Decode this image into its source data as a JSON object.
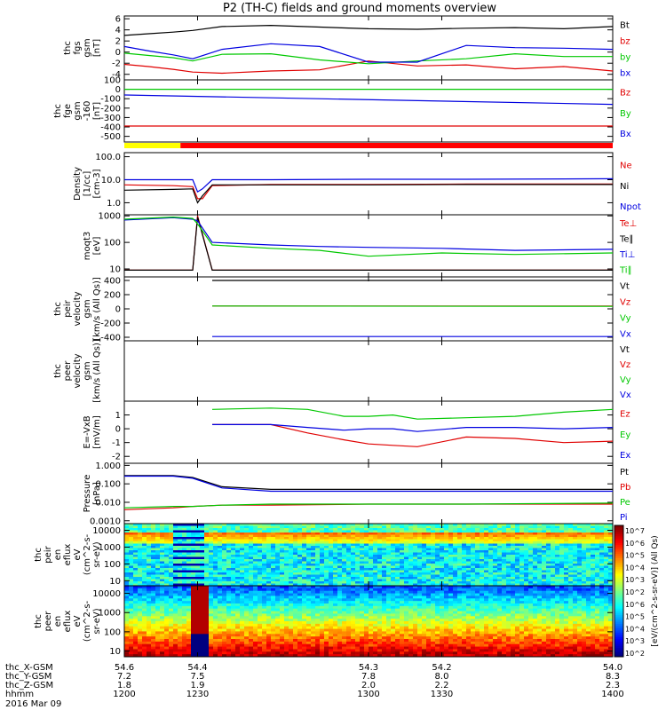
{
  "title": "P2 (TH-C) fields and ground moments overview",
  "colors": {
    "black": "#000000",
    "red": "#e00000",
    "green": "#00c800",
    "blue": "#0000e0"
  },
  "chart_data": [
    {
      "type": "line",
      "ylabel": [
        "thc",
        "fgs",
        "gsm",
        "[nT]"
      ],
      "ylim": [
        -5,
        6.5
      ],
      "yticks": [
        6,
        4,
        2,
        0,
        -2,
        -4
      ],
      "tick_labels": [
        "6",
        "4",
        "2",
        "0",
        "-2",
        "-4"
      ],
      "x": [
        1200,
        1210,
        1220,
        1228,
        1240,
        1260,
        1280,
        1300,
        1320,
        1340,
        1360,
        1380,
        1400
      ],
      "series": [
        {
          "name": "Bt",
          "color": "black",
          "values": [
            3.0,
            3.3,
            3.6,
            3.9,
            4.6,
            4.8,
            4.5,
            4.2,
            4.1,
            4.3,
            4.4,
            4.2,
            4.6
          ]
        },
        {
          "name": "bz",
          "color": "red",
          "values": [
            -2.2,
            -2.6,
            -3.1,
            -3.6,
            -3.8,
            -3.4,
            -3.2,
            -1.6,
            -2.5,
            -2.3,
            -3.0,
            -2.6,
            -3.4
          ]
        },
        {
          "name": "by",
          "color": "green",
          "values": [
            -0.2,
            -0.6,
            -1.0,
            -1.6,
            -0.4,
            -0.3,
            -1.4,
            -2.1,
            -1.6,
            -1.2,
            -0.3,
            -0.8,
            -0.8
          ]
        },
        {
          "name": "bx",
          "color": "blue",
          "values": [
            1.0,
            0.2,
            -0.5,
            -1.2,
            0.5,
            1.5,
            1.0,
            -1.8,
            -1.8,
            1.2,
            0.8,
            0.7,
            0.5
          ]
        }
      ]
    },
    {
      "type": "line",
      "ylabel": [
        "thc",
        "fge",
        "gsm",
        "-160",
        "[nT]"
      ],
      "ylim": [
        -560,
        100
      ],
      "yticks": [
        100,
        0,
        -100,
        -200,
        -300,
        -400,
        -500
      ],
      "tick_labels": [
        "100",
        "0",
        "-100",
        "-200",
        "-300",
        "-400",
        "-500"
      ],
      "x": [
        1200,
        1400
      ],
      "series": [
        {
          "name": "Bz",
          "color": "red",
          "values": [
            -390,
            -390
          ]
        },
        {
          "name": "By",
          "color": "green",
          "values": [
            0,
            0
          ]
        },
        {
          "name": "Bx",
          "color": "blue",
          "values": [
            -60,
            -160
          ]
        }
      ]
    },
    {
      "type": "line",
      "ylabel": [
        "Density",
        "[1/cc]",
        "[cm-3]"
      ],
      "ylim": [
        0.3,
        150
      ],
      "scale": "log",
      "yticks": [
        100,
        10,
        1
      ],
      "tick_labels": [
        "100.0",
        "10.0",
        "1.0"
      ],
      "x": [
        1200,
        1220,
        1228,
        1230,
        1232,
        1236,
        1260,
        1300,
        1340,
        1400
      ],
      "series": [
        {
          "name": "Ne",
          "color": "red",
          "values": [
            6,
            5.5,
            5,
            1.5,
            1.5,
            5.5,
            6.2,
            6.2,
            6.5,
            6.5
          ]
        },
        {
          "name": "Ni",
          "color": "black",
          "values": [
            3.5,
            3.8,
            4,
            1,
            2,
            6,
            6,
            6,
            6.2,
            6.2
          ]
        },
        {
          "name": "Npot",
          "color": "blue",
          "values": [
            10,
            10,
            10,
            3,
            4,
            10,
            10,
            10.5,
            10.5,
            11
          ]
        }
      ]
    },
    {
      "type": "line",
      "ylabel": [
        "moqt3",
        "[eV]"
      ],
      "ylim": [
        5,
        1100
      ],
      "scale": "log",
      "yticks": [
        1000,
        100,
        10
      ],
      "tick_labels": [
        "1000",
        "100",
        "10"
      ],
      "x": [
        1200,
        1220,
        1228,
        1230,
        1236,
        1260,
        1280,
        1300,
        1330,
        1360,
        1400
      ],
      "series": [
        {
          "name": "Te⊥",
          "color": "red",
          "values": [
            9,
            9,
            9,
            1000,
            9,
            9,
            9,
            9,
            9,
            9,
            9
          ]
        },
        {
          "name": "Te∥",
          "color": "black",
          "values": [
            9,
            9,
            9,
            900,
            9,
            9,
            9,
            9,
            9,
            9,
            9
          ]
        },
        {
          "name": "Ti⊥",
          "color": "blue",
          "values": [
            700,
            850,
            750,
            650,
            100,
            80,
            70,
            65,
            60,
            50,
            55
          ]
        },
        {
          "name": "Ti∥",
          "color": "green",
          "values": [
            750,
            900,
            800,
            500,
            80,
            60,
            50,
            30,
            40,
            35,
            40
          ]
        }
      ]
    },
    {
      "type": "line",
      "ylabel": [
        "thc",
        "peir",
        "velocity",
        "gsm",
        "[km/s (All Qs)]"
      ],
      "ylim": [
        -450,
        450
      ],
      "yticks": [
        400,
        200,
        0,
        -200,
        -400
      ],
      "tick_labels": [
        "400",
        "200",
        "0",
        "-200",
        "-400"
      ],
      "x": [
        1236,
        1400
      ],
      "series": [
        {
          "name": "Vt",
          "color": "black",
          "values": [
            400,
            400
          ]
        },
        {
          "name": "Vz",
          "color": "red",
          "values": [
            40,
            40
          ]
        },
        {
          "name": "Vy",
          "color": "green",
          "values": [
            40,
            35
          ]
        },
        {
          "name": "Vx",
          "color": "blue",
          "values": [
            -390,
            -390
          ]
        }
      ]
    },
    {
      "type": "line",
      "ylabel": [
        "thc",
        "peer",
        "velocity",
        "gsm",
        "[km/s (All Qs)]"
      ],
      "ylim": [
        0,
        1
      ],
      "x": [],
      "series": [
        {
          "name": "Vt",
          "color": "black",
          "values": []
        },
        {
          "name": "Vz",
          "color": "red",
          "values": []
        },
        {
          "name": "Vy",
          "color": "green",
          "values": []
        },
        {
          "name": "Vx",
          "color": "blue",
          "values": []
        }
      ]
    },
    {
      "type": "line",
      "ylabel": [
        "E=-VxB",
        "[mV/m]"
      ],
      "ylim": [
        -2.5,
        2
      ],
      "yticks": [
        1,
        0,
        -1,
        -2
      ],
      "tick_labels": [
        "1",
        "0",
        "-1",
        "-2"
      ],
      "x": [
        1236,
        1260,
        1275,
        1290,
        1300,
        1310,
        1320,
        1340,
        1360,
        1380,
        1400
      ],
      "series": [
        {
          "name": "Ez",
          "color": "red",
          "values": [
            0.3,
            0.3,
            -0.3,
            -0.8,
            -1.1,
            -1.2,
            -1.3,
            -0.6,
            -0.7,
            -1.0,
            -0.9
          ]
        },
        {
          "name": "Ey",
          "color": "green",
          "values": [
            1.4,
            1.5,
            1.4,
            0.9,
            0.9,
            1.0,
            0.7,
            0.8,
            0.9,
            1.2,
            1.4
          ]
        },
        {
          "name": "Ex",
          "color": "blue",
          "values": [
            0.3,
            0.3,
            0.1,
            -0.1,
            0.0,
            0.0,
            -0.2,
            0.1,
            0.1,
            0.0,
            0.1
          ]
        }
      ]
    },
    {
      "type": "line",
      "ylabel": [
        "Pressure",
        "[nPa]"
      ],
      "ylim": [
        0.0007,
        1.3
      ],
      "scale": "log",
      "yticks": [
        1,
        0.1,
        0.01,
        0.001
      ],
      "tick_labels": [
        "1.000",
        "0.100",
        "0.010",
        "0.0010"
      ],
      "x": [
        1200,
        1220,
        1228,
        1240,
        1260,
        1300,
        1340,
        1400
      ],
      "series": [
        {
          "name": "Pt",
          "color": "black",
          "values": [
            0.28,
            0.28,
            0.22,
            0.07,
            0.05,
            0.05,
            0.05,
            0.05
          ]
        },
        {
          "name": "Pb",
          "color": "red",
          "values": [
            0.004,
            0.005,
            0.006,
            0.007,
            0.007,
            0.008,
            0.008,
            0.008
          ]
        },
        {
          "name": "Pe",
          "color": "green",
          "values": [
            0.005,
            0.006,
            0.006,
            0.007,
            0.008,
            0.008,
            0.008,
            0.009
          ]
        },
        {
          "name": "Pi",
          "color": "blue",
          "values": [
            0.26,
            0.26,
            0.2,
            0.06,
            0.04,
            0.04,
            0.04,
            0.04
          ]
        }
      ]
    },
    {
      "type": "heatmap",
      "ylabel": [
        "thc",
        "peir",
        "en",
        "eflux",
        "eV",
        "(cm^2-s-",
        "sr-eV)"
      ],
      "ylim": [
        5,
        25000
      ],
      "scale": "log",
      "yticks": [
        10000,
        1000,
        100,
        10
      ],
      "tick_labels": [
        "10000",
        "1000",
        "100",
        "10"
      ]
    },
    {
      "type": "heatmap",
      "ylabel": [
        "thc",
        "peer",
        "en",
        "eflux",
        "eV",
        "(cm^2-s-",
        "sr-eV)"
      ],
      "ylim": [
        5,
        25000
      ],
      "scale": "log",
      "yticks": [
        10000,
        1000,
        100,
        10
      ],
      "tick_labels": [
        "10000",
        "1000",
        "100",
        "10"
      ]
    }
  ],
  "colorbar": {
    "label": "[eV/(cm^2-s-sr-eV)] (All Qs)",
    "ticks": [
      "10^7",
      "10^6",
      "10^5",
      "10^4",
      "10^3",
      "10^2",
      "10^6",
      "10^5",
      "10^4",
      "10^3",
      "10^2"
    ]
  },
  "mode_bar": {
    "yellow_to": 1223,
    "colors": [
      "#ffff00",
      "#ff0000"
    ]
  },
  "x_axis": {
    "xlim": [
      1200,
      1400
    ],
    "ticks": [
      1200,
      1230,
      1300,
      1330,
      1400
    ],
    "rows": [
      {
        "label": "thc_X-GSM",
        "values": [
          "54.6",
          "54.4",
          "54.3",
          "54.2",
          "54.0"
        ]
      },
      {
        "label": "thc_Y-GSM",
        "values": [
          "7.2",
          "7.5",
          "7.8",
          "8.0",
          "8.3"
        ]
      },
      {
        "label": "thc_Z-GSM",
        "values": [
          "1.8",
          "1.9",
          "2.0",
          "2.2",
          "2.3"
        ]
      },
      {
        "label": "hhmm",
        "values": [
          "1200",
          "1230",
          "1300",
          "1330",
          "1400"
        ]
      }
    ],
    "date": "2016 Mar 09"
  }
}
